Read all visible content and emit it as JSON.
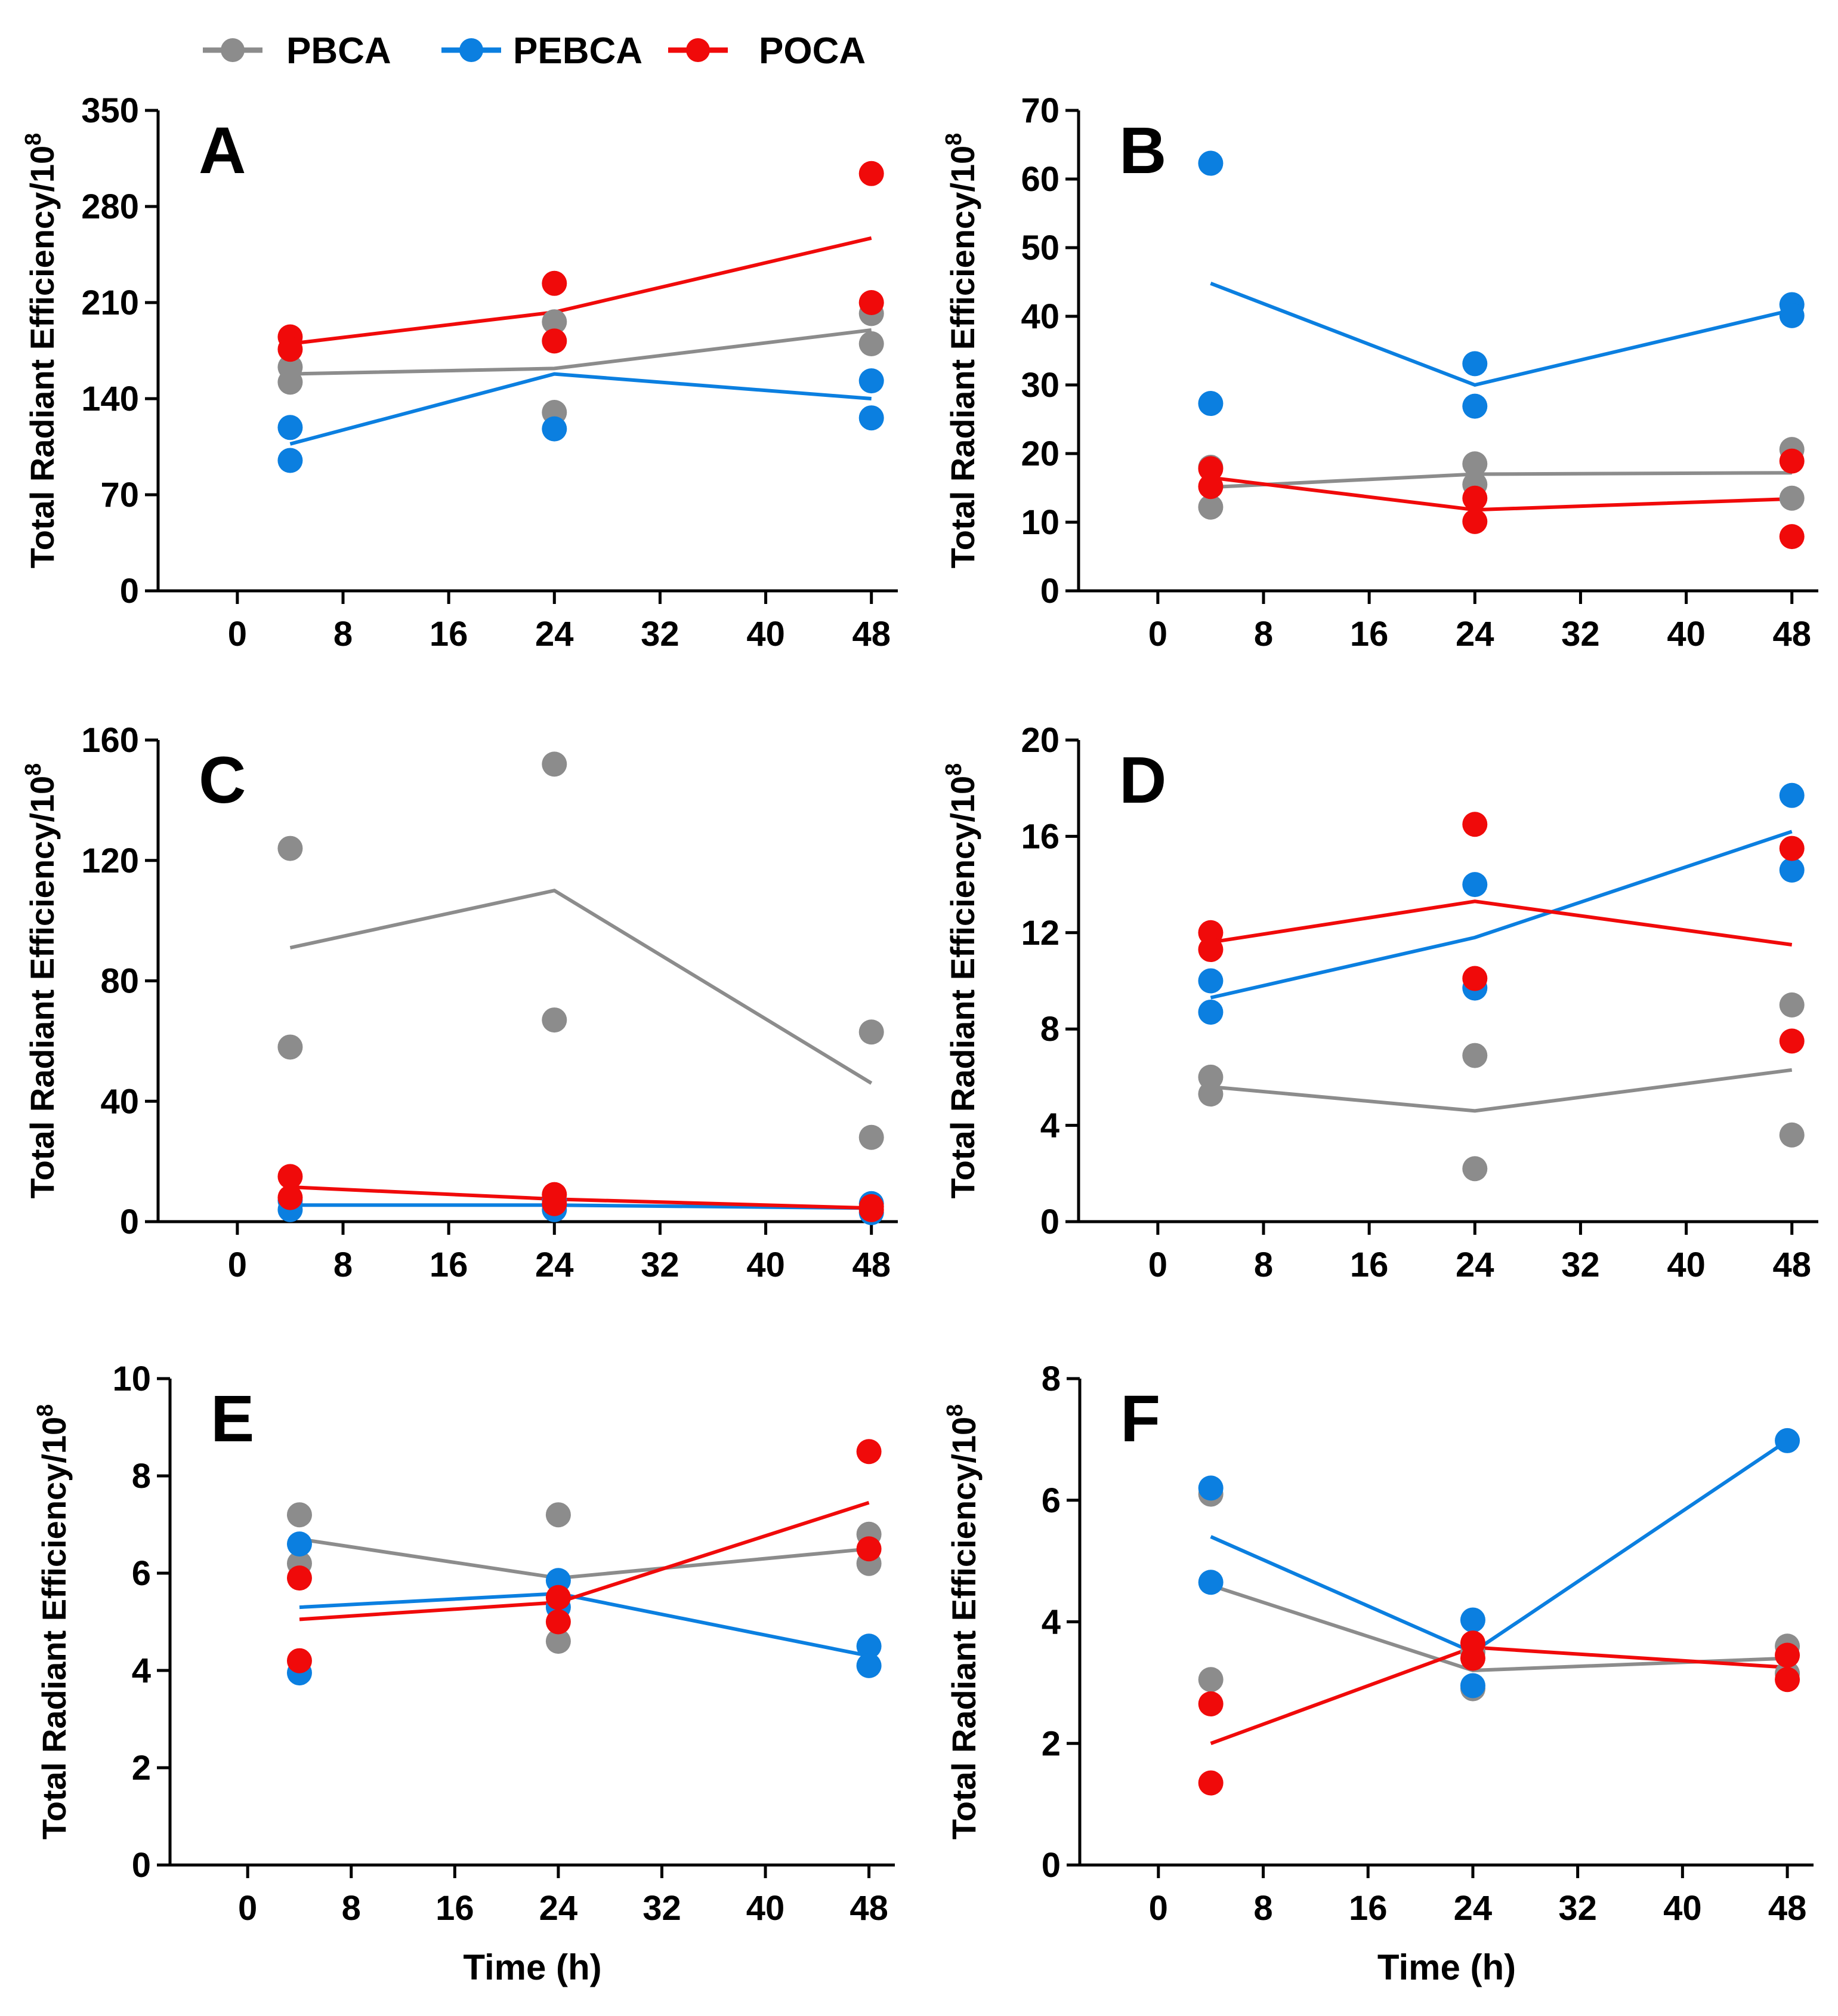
{
  "legend": [
    {
      "name": "PBCA",
      "color": "#8c8c8c"
    },
    {
      "name": "PEBCA",
      "color": "#0b7fe0"
    },
    {
      "name": "POCA",
      "color": "#f00a0a"
    }
  ],
  "chart_data": [
    {
      "type": "scatter",
      "panel": "A",
      "ylabel": "Total Radiant Efficiency/10",
      "ylabel_sup": "8",
      "xlabel": "",
      "ylim": [
        0,
        350
      ],
      "yticks": [
        0,
        70,
        140,
        210,
        280,
        350
      ],
      "xlim": [
        -6,
        50
      ],
      "xticks": [
        0,
        8,
        16,
        24,
        32,
        40,
        48
      ],
      "series": [
        {
          "name": "PBCA",
          "color": "#8c8c8c",
          "points": [
            [
              4,
              163
            ],
            [
              4,
              152
            ],
            [
              24,
              196
            ],
            [
              24,
              130
            ],
            [
              48,
              202
            ],
            [
              48,
              180
            ]
          ],
          "line_x": [
            4,
            24,
            48
          ],
          "line_y": [
            158,
            162,
            190
          ]
        },
        {
          "name": "PEBCA",
          "color": "#0b7fe0",
          "points": [
            [
              4,
              119
            ],
            [
              4,
              95
            ],
            [
              24,
              118
            ],
            [
              48,
              153
            ],
            [
              48,
              126
            ]
          ],
          "line_x": [
            4,
            24,
            48
          ],
          "line_y": [
            107,
            158,
            140
          ]
        },
        {
          "name": "POCA",
          "color": "#f00a0a",
          "points": [
            [
              4,
              185
            ],
            [
              4,
              176
            ],
            [
              24,
              224
            ],
            [
              24,
              182
            ],
            [
              48,
              304
            ],
            [
              48,
              210
            ]
          ],
          "line_x": [
            4,
            24,
            48
          ],
          "line_y": [
            180,
            203,
            257
          ]
        }
      ]
    },
    {
      "type": "scatter",
      "panel": "B",
      "ylabel": "Total Radiant Efficiency/10",
      "ylabel_sup": "8",
      "xlabel": "",
      "ylim": [
        0,
        70
      ],
      "yticks": [
        0,
        10,
        20,
        30,
        40,
        50,
        60,
        70
      ],
      "xlim": [
        -6,
        50
      ],
      "xticks": [
        0,
        8,
        16,
        24,
        32,
        40,
        48
      ],
      "series": [
        {
          "name": "PBCA",
          "color": "#8c8c8c",
          "points": [
            [
              4,
              18
            ],
            [
              4,
              12.2
            ],
            [
              24,
              18.5
            ],
            [
              24,
              15.5
            ],
            [
              48,
              20.6
            ],
            [
              48,
              13.5
            ]
          ],
          "line_x": [
            4,
            24,
            48
          ],
          "line_y": [
            15.1,
            17,
            17.2
          ]
        },
        {
          "name": "PEBCA",
          "color": "#0b7fe0",
          "points": [
            [
              4,
              62.3
            ],
            [
              4,
              27.3
            ],
            [
              24,
              33.1
            ],
            [
              24,
              26.9
            ],
            [
              48,
              41.7
            ],
            [
              48,
              40.1
            ]
          ],
          "line_x": [
            4,
            24,
            48
          ],
          "line_y": [
            44.8,
            30,
            40.9
          ]
        },
        {
          "name": "POCA",
          "color": "#f00a0a",
          "points": [
            [
              4,
              17.8
            ],
            [
              4,
              15.2
            ],
            [
              24,
              13.5
            ],
            [
              24,
              10.1
            ],
            [
              48,
              18.9
            ],
            [
              48,
              7.9
            ]
          ],
          "line_x": [
            4,
            24,
            48
          ],
          "line_y": [
            16.5,
            11.8,
            13.4
          ]
        }
      ]
    },
    {
      "type": "scatter",
      "panel": "C",
      "ylabel": "Total Radiant Efficiency/10",
      "ylabel_sup": "8",
      "xlabel": "",
      "ylim": [
        0,
        160
      ],
      "yticks": [
        0,
        40,
        80,
        120,
        160
      ],
      "xlim": [
        -6,
        50
      ],
      "xticks": [
        0,
        8,
        16,
        24,
        32,
        40,
        48
      ],
      "series": [
        {
          "name": "PBCA",
          "color": "#8c8c8c",
          "points": [
            [
              4,
              124
            ],
            [
              4,
              58
            ],
            [
              24,
              152
            ],
            [
              24,
              67
            ],
            [
              48,
              63
            ],
            [
              48,
              28
            ]
          ],
          "line_x": [
            4,
            24,
            48
          ],
          "line_y": [
            91,
            110,
            46
          ]
        },
        {
          "name": "PEBCA",
          "color": "#0b7fe0",
          "points": [
            [
              4,
              7
            ],
            [
              4,
              4
            ],
            [
              24,
              7
            ],
            [
              24,
              4
            ],
            [
              48,
              6
            ],
            [
              48,
              3
            ]
          ],
          "line_x": [
            4,
            24,
            48
          ],
          "line_y": [
            5.5,
            5.5,
            4.5
          ]
        },
        {
          "name": "POCA",
          "color": "#f00a0a",
          "points": [
            [
              4,
              15
            ],
            [
              4,
              8
            ],
            [
              24,
              9
            ],
            [
              24,
              6
            ],
            [
              48,
              5
            ],
            [
              48,
              4
            ]
          ],
          "line_x": [
            4,
            24,
            48
          ],
          "line_y": [
            11.5,
            7.5,
            4.5
          ]
        }
      ]
    },
    {
      "type": "scatter",
      "panel": "D",
      "ylabel": "Total Radiant Efficiency/10",
      "ylabel_sup": "8",
      "xlabel": "",
      "ylim": [
        0,
        20
      ],
      "yticks": [
        0,
        4,
        8,
        12,
        16,
        20
      ],
      "xlim": [
        -6,
        50
      ],
      "xticks": [
        0,
        8,
        16,
        24,
        32,
        40,
        48
      ],
      "series": [
        {
          "name": "PBCA",
          "color": "#8c8c8c",
          "points": [
            [
              4,
              6
            ],
            [
              4,
              5.3
            ],
            [
              24,
              6.9
            ],
            [
              24,
              2.2
            ],
            [
              48,
              9
            ],
            [
              48,
              3.6
            ]
          ],
          "line_x": [
            4,
            24,
            48
          ],
          "line_y": [
            5.6,
            4.6,
            6.3
          ]
        },
        {
          "name": "PEBCA",
          "color": "#0b7fe0",
          "points": [
            [
              4,
              10
            ],
            [
              4,
              8.7
            ],
            [
              24,
              14
            ],
            [
              24,
              9.7
            ],
            [
              48,
              17.7
            ],
            [
              48,
              14.6
            ]
          ],
          "line_x": [
            4,
            24,
            48
          ],
          "line_y": [
            9.3,
            11.8,
            16.2
          ]
        },
        {
          "name": "POCA",
          "color": "#f00a0a",
          "points": [
            [
              4,
              12
            ],
            [
              4,
              11.3
            ],
            [
              24,
              16.5
            ],
            [
              24,
              10.1
            ],
            [
              48,
              15.5
            ],
            [
              48,
              7.5
            ]
          ],
          "line_x": [
            4,
            24,
            48
          ],
          "line_y": [
            11.6,
            13.3,
            11.5
          ]
        }
      ]
    },
    {
      "type": "scatter",
      "panel": "E",
      "ylabel": "Total Radiant Efficiency/10",
      "ylabel_sup": "8",
      "xlabel": "Time (h)",
      "ylim": [
        0,
        10
      ],
      "yticks": [
        0,
        2,
        4,
        6,
        8,
        10
      ],
      "xlim": [
        -6,
        50
      ],
      "xticks": [
        0,
        8,
        16,
        24,
        32,
        40,
        48
      ],
      "series": [
        {
          "name": "PBCA",
          "color": "#8c8c8c",
          "points": [
            [
              4,
              7.2
            ],
            [
              4,
              6.2
            ],
            [
              24,
              7.2
            ],
            [
              24,
              4.6
            ],
            [
              48,
              6.8
            ],
            [
              48,
              6.2
            ]
          ],
          "line_x": [
            4,
            24,
            48
          ],
          "line_y": [
            6.7,
            5.9,
            6.5
          ]
        },
        {
          "name": "PEBCA",
          "color": "#0b7fe0",
          "points": [
            [
              4,
              6.6
            ],
            [
              4,
              3.95
            ],
            [
              24,
              5.85
            ],
            [
              24,
              5.3
            ],
            [
              48,
              4.5
            ],
            [
              48,
              4.1
            ]
          ],
          "line_x": [
            4,
            24,
            48
          ],
          "line_y": [
            5.3,
            5.58,
            4.3
          ]
        },
        {
          "name": "POCA",
          "color": "#f00a0a",
          "points": [
            [
              4,
              5.9
            ],
            [
              4,
              4.2
            ],
            [
              24,
              5.5
            ],
            [
              24,
              5
            ],
            [
              48,
              8.5
            ],
            [
              48,
              6.5
            ]
          ],
          "line_x": [
            4,
            24,
            48
          ],
          "line_y": [
            5.05,
            5.4,
            7.45
          ]
        }
      ]
    },
    {
      "type": "scatter",
      "panel": "F",
      "ylabel": "Total Radiant Efficiency/10",
      "ylabel_sup": "8",
      "xlabel": "Time (h)",
      "ylim": [
        0,
        8
      ],
      "yticks": [
        0,
        2,
        4,
        6,
        8
      ],
      "xlim": [
        -6,
        50
      ],
      "xticks": [
        0,
        8,
        16,
        24,
        32,
        40,
        48
      ],
      "series": [
        {
          "name": "PBCA",
          "color": "#8c8c8c",
          "points": [
            [
              4,
              6.1
            ],
            [
              4,
              3.05
            ],
            [
              24,
              3.5
            ],
            [
              24,
              2.9
            ],
            [
              48,
              3.6
            ],
            [
              48,
              3.15
            ]
          ],
          "line_x": [
            4,
            24,
            48
          ],
          "line_y": [
            4.6,
            3.2,
            3.4
          ]
        },
        {
          "name": "PEBCA",
          "color": "#0b7fe0",
          "points": [
            [
              4,
              6.2
            ],
            [
              4,
              4.65
            ],
            [
              24,
              4.03
            ],
            [
              24,
              2.95
            ],
            [
              48,
              6.98
            ]
          ],
          "line_x": [
            4,
            24,
            48
          ],
          "line_y": [
            5.4,
            3.5,
            6.98
          ]
        },
        {
          "name": "POCA",
          "color": "#f00a0a",
          "points": [
            [
              4,
              2.65
            ],
            [
              4,
              1.35
            ],
            [
              24,
              3.65
            ],
            [
              24,
              3.4
            ],
            [
              48,
              3.45
            ],
            [
              48,
              3.05
            ]
          ],
          "line_x": [
            4,
            24,
            48
          ],
          "line_y": [
            2,
            3.58,
            3.25
          ]
        }
      ]
    }
  ]
}
